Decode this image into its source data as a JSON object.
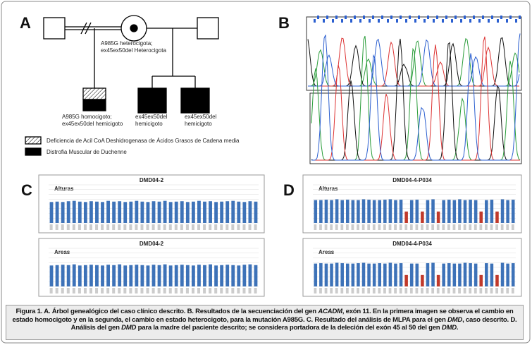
{
  "panels": [
    "A",
    "B",
    "C",
    "D"
  ],
  "pedigree": {
    "mother_lines": [
      "A985G heterocigota;",
      "ex45ex50del Heterocigota"
    ],
    "children": [
      [
        "A985G homocigoto;",
        "ex45ex50del hemicigoto"
      ],
      [
        "ex45ex50del",
        "hemicigoto"
      ],
      [
        "ex45ex50del",
        "hemicigoto"
      ]
    ],
    "legend": [
      "Deficiencia de Acil CoA Deshidrogenasa de Ácidos Grasos de Cadena media",
      "Distrofia Muscular de Duchenne"
    ]
  },
  "chart_data": [
    {
      "type": "bar",
      "title": "DMD04-2",
      "label": "Alturas",
      "color": "#3d72b8",
      "ylim": [
        0,
        1
      ],
      "values": [
        0.55,
        0.56,
        0.55,
        0.57,
        0.58,
        0.56,
        0.55,
        0.57,
        0.56,
        0.55,
        0.58,
        0.56,
        0.57,
        0.55,
        0.56,
        0.58,
        0.56,
        0.55,
        0.57,
        0.56,
        0.58,
        0.55,
        0.56,
        0.57,
        0.55,
        0.56,
        0.58,
        0.56,
        0.57,
        0.55,
        0.56,
        0.57,
        0.58,
        0.56,
        0.55,
        0.57,
        0.56
      ]
    },
    {
      "type": "bar",
      "title": "DMD04-2",
      "label": "Areas",
      "color": "#3d72b8",
      "ylim": [
        0,
        1
      ],
      "values": [
        0.55,
        0.56,
        0.57,
        0.56,
        0.58,
        0.55,
        0.56,
        0.57,
        0.56,
        0.55,
        0.57,
        0.56,
        0.58,
        0.55,
        0.56,
        0.57,
        0.56,
        0.55,
        0.57,
        0.56,
        0.58,
        0.55,
        0.56,
        0.57,
        0.56,
        0.55,
        0.57,
        0.56,
        0.58,
        0.55,
        0.56,
        0.57,
        0.56,
        0.55,
        0.57,
        0.58,
        0.56
      ]
    },
    {
      "type": "bar",
      "title": "DMD04-4-P034",
      "label": "Alturas",
      "color": "#3d72b8",
      "deleted_color": "#c0392b",
      "deleted": [
        17,
        20,
        23,
        31,
        34
      ],
      "ylim": [
        0,
        1
      ],
      "values": [
        0.6,
        0.6,
        0.61,
        0.6,
        0.62,
        0.6,
        0.61,
        0.6,
        0.6,
        0.62,
        0.61,
        0.6,
        0.6,
        0.61,
        0.62,
        0.6,
        0.61,
        0.3,
        0.6,
        0.61,
        0.3,
        0.6,
        0.62,
        0.3,
        0.6,
        0.61,
        0.6,
        0.62,
        0.6,
        0.61,
        0.6,
        0.3,
        0.6,
        0.61,
        0.3,
        0.62,
        0.6,
        0.61
      ]
    },
    {
      "type": "bar",
      "title": "DMD04-4-P034",
      "label": "Areas",
      "color": "#3d72b8",
      "deleted_color": "#c0392b",
      "deleted": [
        17,
        20,
        23,
        31,
        34
      ],
      "ylim": [
        0,
        1
      ],
      "values": [
        0.6,
        0.61,
        0.6,
        0.6,
        0.62,
        0.61,
        0.6,
        0.6,
        0.61,
        0.62,
        0.6,
        0.6,
        0.61,
        0.6,
        0.62,
        0.6,
        0.61,
        0.3,
        0.6,
        0.6,
        0.3,
        0.61,
        0.62,
        0.3,
        0.6,
        0.61,
        0.6,
        0.6,
        0.62,
        0.61,
        0.6,
        0.3,
        0.61,
        0.6,
        0.3,
        0.62,
        0.6,
        0.61
      ]
    }
  ],
  "caption": [
    {
      "text": "Figura 1. A. Árbol genealógico del caso clínico descrito. B. Resultados de la secuenciación del gen ",
      "italic": false
    },
    {
      "text": "ACADM",
      "italic": true
    },
    {
      "text": ", exón 11. En la primera imagen se observa el cambio en estado homocigoto y en la segunda, el cambio en estado heterocigoto, para la mutación A985G. C. Resultado del análisis de MLPA para el gen ",
      "italic": false
    },
    {
      "text": "DMD",
      "italic": true
    },
    {
      "text": ", caso descrito. D. Análisis del gen ",
      "italic": false
    },
    {
      "text": "DMD",
      "italic": true
    },
    {
      "text": " para la madre del paciente descrito; se considera portadora de la deleción del exón 45 al 50 del gen ",
      "italic": false
    },
    {
      "text": "DMD",
      "italic": true
    },
    {
      "text": ".",
      "italic": false
    }
  ]
}
